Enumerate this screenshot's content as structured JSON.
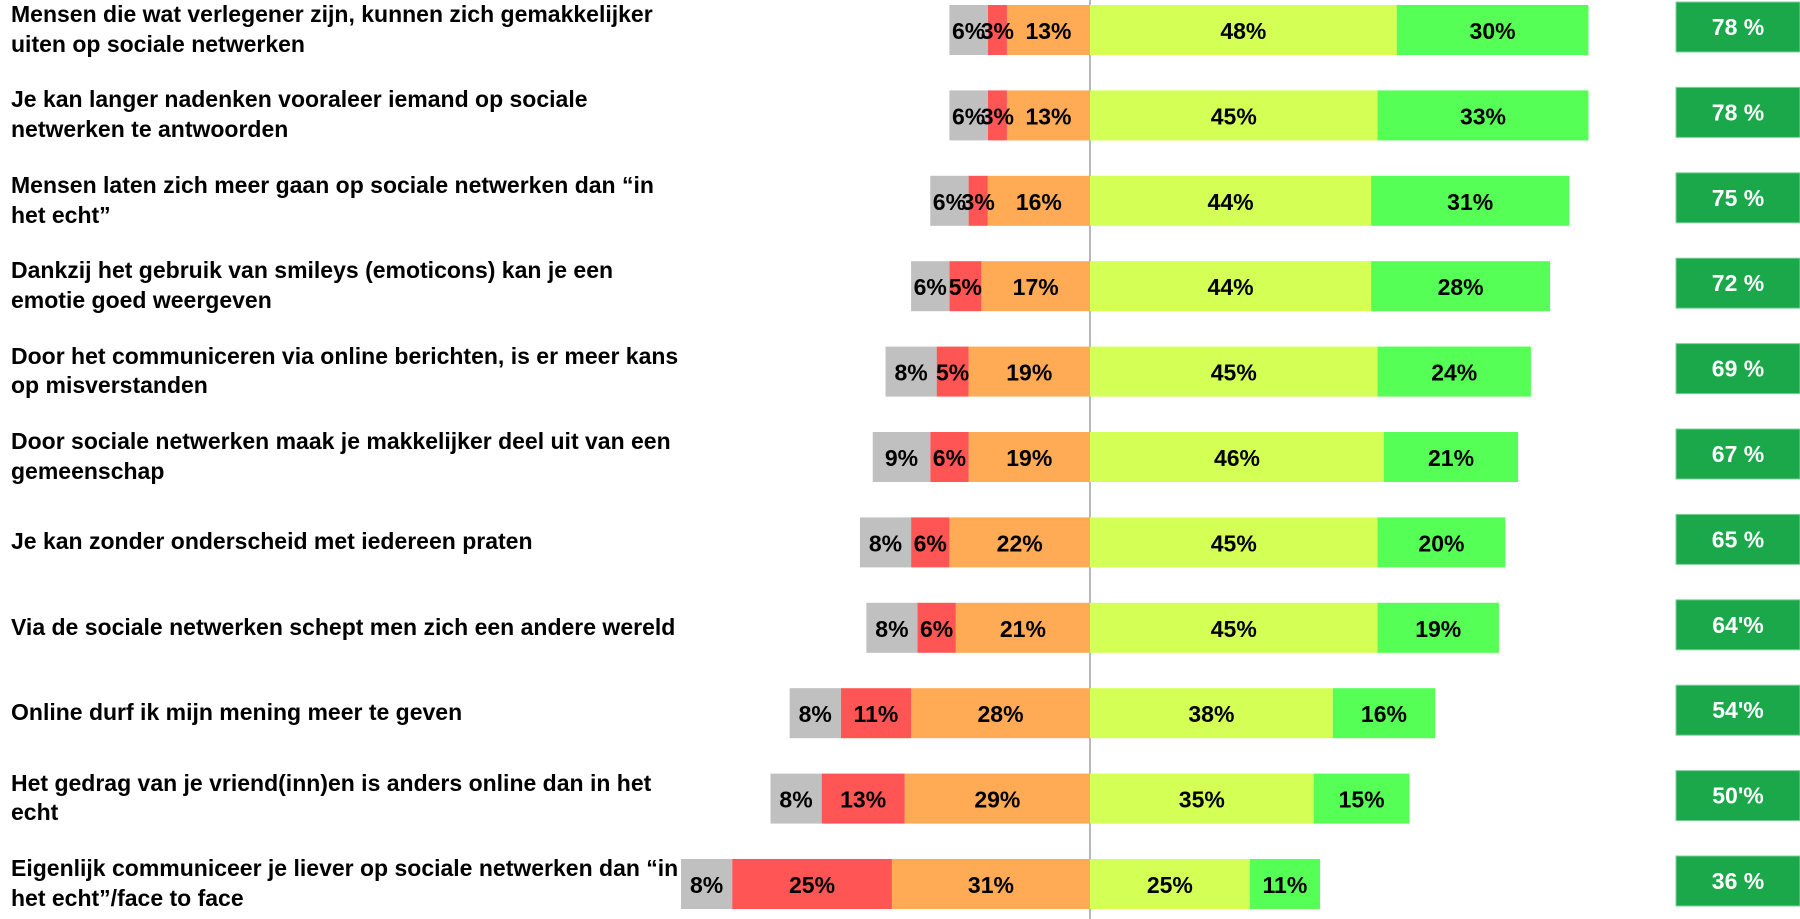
{
  "chart_data": {
    "type": "diverging_bar",
    "categories": [
      "Mensen die wat verlegener zijn, kunnen zich gemakkelijker uiten op sociale netwerken",
      "Je kan langer nadenken vooraleer iemand op sociale netwerken te antwoorden",
      "Mensen laten zich meer gaan op sociale netwerken dan “in het echt”",
      "Dankzij het gebruik van smileys (emoticons) kan je een emotie goed weergeven",
      "Door het communiceren via online berichten, is er meer kans op misverstanden",
      "Door sociale netwerken maak je makkelijker deel uit van een gemeenschap",
      "Je kan zonder onderscheid met iedereen praten",
      "Via de sociale netwerken schept men zich een andere wereld",
      "Online durf ik mijn mening meer te geven",
      "Het gedrag van je vriend(inn)en is anders online dan in het echt",
      "Eigenlijk communiceer je liever op sociale netwerken dan “in het echt”/face to face"
    ],
    "series": [
      {
        "color": "#c0c0c0",
        "side": "left",
        "values": [
          6,
          6,
          6,
          6,
          8,
          9,
          8,
          8,
          8,
          8,
          8
        ],
        "value_labels": [
          "6%",
          "6%",
          "6%",
          "6%",
          "8%",
          "9%",
          "8%",
          "8%",
          "8%",
          "8%",
          "8%"
        ]
      },
      {
        "color": "#ff5555",
        "side": "left",
        "values": [
          3,
          3,
          3,
          5,
          5,
          6,
          6,
          6,
          11,
          13,
          25
        ],
        "value_labels": [
          "3%",
          "3%",
          "3%",
          "5%",
          "5%",
          "6%",
          "6%",
          "6%",
          "11%",
          "13%",
          "25%"
        ]
      },
      {
        "color": "#ffaa55",
        "side": "left",
        "values": [
          13,
          13,
          16,
          17,
          19,
          19,
          22,
          21,
          28,
          29,
          31
        ],
        "value_labels": [
          "13%",
          "13%",
          "16%",
          "17%",
          "19%",
          "19%",
          "22%",
          "21%",
          "28%",
          "29%",
          "31%"
        ]
      },
      {
        "color": "#d4ff55",
        "side": "right",
        "values": [
          48,
          45,
          44,
          44,
          45,
          46,
          45,
          45,
          38,
          35,
          25
        ],
        "value_labels": [
          "48%",
          "45%",
          "44%",
          "44%",
          "45%",
          "46%",
          "45%",
          "45%",
          "38%",
          "35%",
          "25%"
        ]
      },
      {
        "color": "#55ff55",
        "side": "right",
        "values": [
          30,
          33,
          31,
          28,
          24,
          21,
          20,
          19,
          16,
          15,
          11
        ],
        "value_labels": [
          "30%",
          "33%",
          "31%",
          "28%",
          "24%",
          "21%",
          "20%",
          "19%",
          "16%",
          "15%",
          "11%"
        ]
      }
    ],
    "totals": {
      "color": "#1aa84a",
      "values": [
        78,
        78,
        75,
        72,
        69,
        67,
        65,
        64,
        54,
        50,
        36
      ],
      "value_labels": [
        "78 %",
        "78 %",
        "75 %",
        "72 %",
        "69 %",
        "67 %",
        "65 %",
        "64'%",
        "54'%",
        "50'%",
        "36 %"
      ]
    }
  }
}
